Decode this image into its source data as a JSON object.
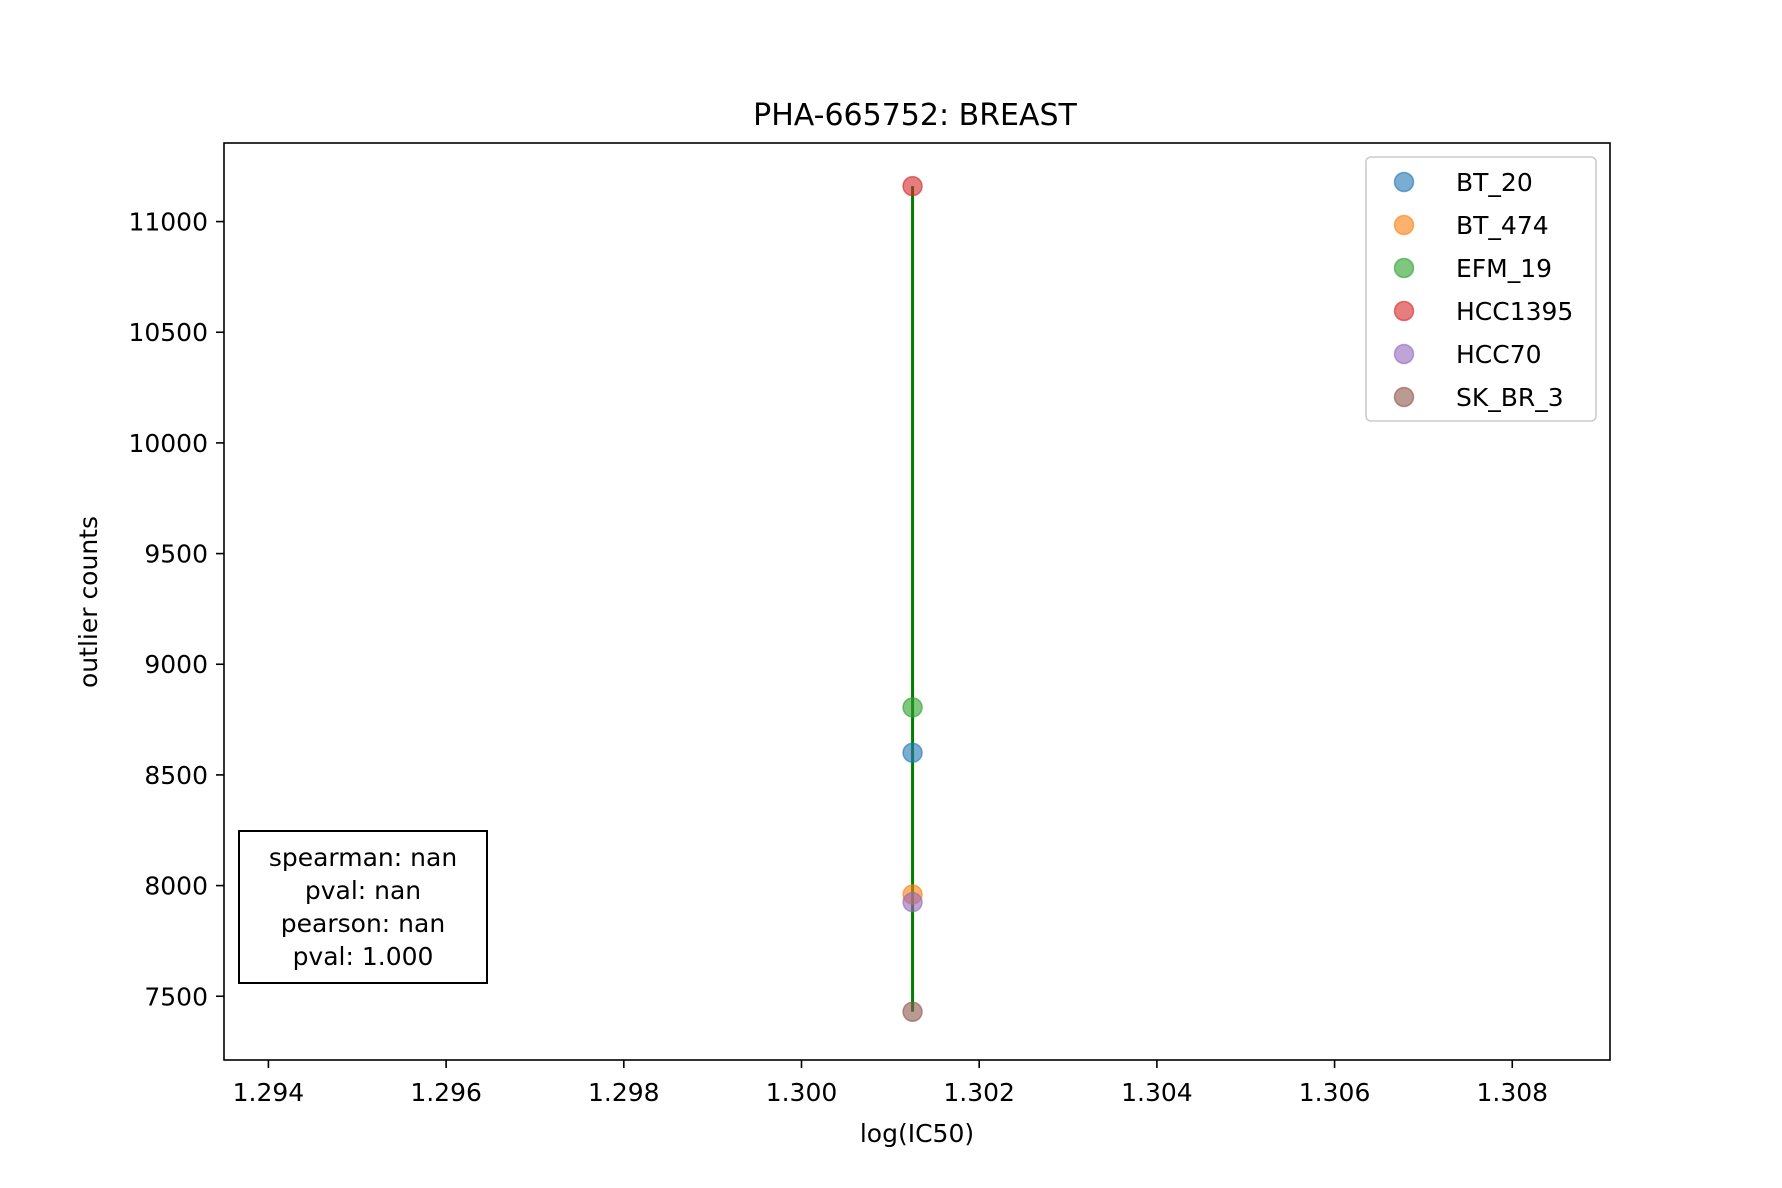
{
  "chart_data": {
    "type": "scatter",
    "title": "PHA-665752: BREAST",
    "xlabel": "log(IC50)",
    "ylabel": "outlier counts",
    "xlim": [
      1.2935,
      1.3091
    ],
    "ylim": [
      7212,
      11355
    ],
    "x_ticks": [
      1.294,
      1.296,
      1.298,
      1.3,
      1.302,
      1.304,
      1.306,
      1.308
    ],
    "x_tick_labels": [
      "1.294",
      "1.296",
      "1.298",
      "1.300",
      "1.302",
      "1.304",
      "1.306",
      "1.308"
    ],
    "y_ticks": [
      7500,
      8000,
      8500,
      9000,
      9500,
      10000,
      10500,
      11000
    ],
    "y_tick_labels": [
      "7500",
      "8000",
      "8500",
      "9000",
      "9500",
      "10000",
      "10500",
      "11000"
    ],
    "grid": false,
    "legend_position": "top-right",
    "series": [
      {
        "name": "BT_20",
        "color": "#1f77b4",
        "points": [
          {
            "x": 1.30125,
            "y": 8600
          }
        ]
      },
      {
        "name": "BT_474",
        "color": "#ff7f0e",
        "points": [
          {
            "x": 1.30125,
            "y": 7960
          }
        ]
      },
      {
        "name": "EFM_19",
        "color": "#2ca02c",
        "points": [
          {
            "x": 1.30125,
            "y": 8805
          }
        ]
      },
      {
        "name": "HCC1395",
        "color": "#d62728",
        "points": [
          {
            "x": 1.30125,
            "y": 11160
          }
        ]
      },
      {
        "name": "HCC70",
        "color": "#9467bd",
        "points": [
          {
            "x": 1.30125,
            "y": 7925
          }
        ]
      },
      {
        "name": "SK_BR_3",
        "color": "#8c564b",
        "points": [
          {
            "x": 1.30125,
            "y": 7430
          }
        ]
      }
    ],
    "fit_line": {
      "color": "#007f00",
      "points": [
        {
          "x": 1.30125,
          "y": 7430
        },
        {
          "x": 1.30125,
          "y": 11160
        }
      ]
    },
    "annotation": {
      "lines": [
        "spearman: nan",
        "pval: nan",
        "pearson: nan",
        "pval: 1.000"
      ],
      "position": "bottom-left"
    }
  }
}
